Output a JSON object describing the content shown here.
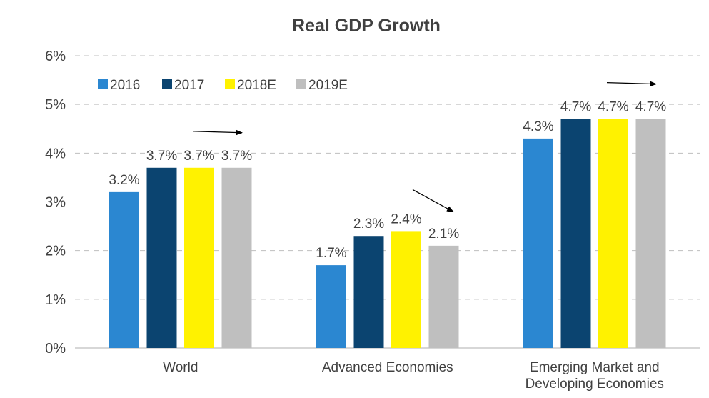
{
  "chart_data": {
    "type": "bar",
    "title": "Real GDP Growth",
    "xlabel": "",
    "ylabel": "",
    "ylim": [
      0,
      6
    ],
    "yticks": [
      0,
      1,
      2,
      3,
      4,
      5,
      6
    ],
    "ytick_labels": [
      "0%",
      "1%",
      "2%",
      "3%",
      "4%",
      "5%",
      "6%"
    ],
    "grid": true,
    "legend_position": "top-left",
    "categories": [
      [
        "World"
      ],
      [
        "Advanced Economies"
      ],
      [
        "Emerging Market and",
        "Developing Economies"
      ]
    ],
    "series": [
      {
        "name": "2016",
        "color": "#2B87D1",
        "values": [
          3.2,
          1.7,
          4.3
        ],
        "labels": [
          "3.2%",
          "1.7%",
          "4.3%"
        ]
      },
      {
        "name": "2017",
        "color": "#0B4470",
        "values": [
          3.7,
          2.3,
          4.7
        ],
        "labels": [
          "3.7%",
          "2.3%",
          "4.7%"
        ]
      },
      {
        "name": "2018E",
        "color": "#FFF200",
        "values": [
          3.7,
          2.4,
          4.7
        ],
        "labels": [
          "3.7%",
          "2.4%",
          "4.7%"
        ]
      },
      {
        "name": "2019E",
        "color": "#BFBFBF",
        "values": [
          3.7,
          2.1,
          4.7
        ],
        "labels": [
          "3.7%",
          "2.1%",
          "4.7%"
        ]
      }
    ],
    "annotations": [
      {
        "category": 0,
        "direction": "right"
      },
      {
        "category": 1,
        "direction": "down-right"
      },
      {
        "category": 2,
        "direction": "right"
      }
    ]
  },
  "colors": {
    "text": "#404040",
    "grid": "#BFBFBF",
    "axis": "#BFBFBF",
    "arrow": "#000000"
  }
}
